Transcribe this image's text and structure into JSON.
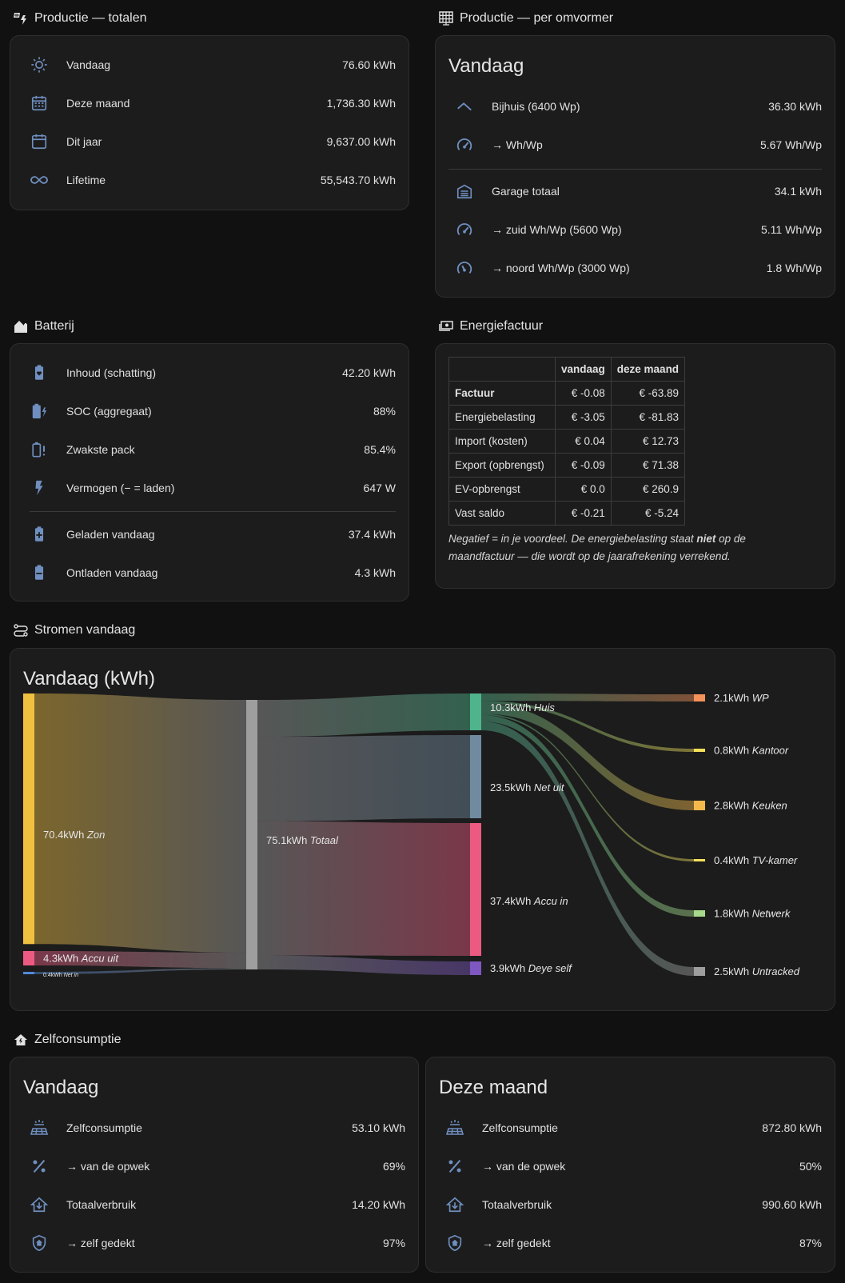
{
  "prod_totals": {
    "title": "Productie — totalen",
    "rows": [
      {
        "label": "Vandaag",
        "value": "76.60 kWh",
        "icon": "sun-icon"
      },
      {
        "label": "Deze maand",
        "value": "1,736.30 kWh",
        "icon": "calendar-month-icon"
      },
      {
        "label": "Dit jaar",
        "value": "9,637.00 kWh",
        "icon": "calendar-icon"
      },
      {
        "label": "Lifetime",
        "value": "55,543.70 kWh",
        "icon": "infinity-icon"
      }
    ]
  },
  "prod_inverter": {
    "title": "Productie — per omvormer",
    "header": "Vandaag",
    "rows": [
      {
        "label": "Bijhuis (6400 Wp)",
        "value": "36.30 kWh",
        "icon": "roof-icon"
      },
      {
        "label": "→ Wh/Wp",
        "value": "5.67 Wh/Wp",
        "icon": "gauge-icon"
      },
      {
        "label": "Garage totaal",
        "value": "34.1 kWh",
        "icon": "garage-icon"
      },
      {
        "label": "→ zuid Wh/Wp (5600 Wp)",
        "value": "5.11 Wh/Wp",
        "icon": "gauge-icon"
      },
      {
        "label": "→ noord Wh/Wp (3000 Wp)",
        "value": "1.8 Wh/Wp",
        "icon": "gauge-low-icon"
      }
    ]
  },
  "battery": {
    "title": "Batterij",
    "rows": [
      {
        "label": "Inhoud (schatting)",
        "value": "42.20 kWh",
        "icon": "battery-heart-icon"
      },
      {
        "label": "SOC (aggregaat)",
        "value": "88%",
        "icon": "battery-charging-icon"
      },
      {
        "label": "Zwakste pack",
        "value": "85.4%",
        "icon": "battery-alert-icon"
      },
      {
        "label": "Vermogen (− = laden)",
        "value": "647 W",
        "icon": "flash-icon"
      },
      {
        "label": "Geladen vandaag",
        "value": "37.4 kWh",
        "icon": "battery-plus-icon"
      },
      {
        "label": "Ontladen vandaag",
        "value": "4.3 kWh",
        "icon": "battery-minus-icon"
      }
    ]
  },
  "bill": {
    "title": "Energiefactuur",
    "columns": [
      "",
      "vandaag",
      "deze maand"
    ],
    "rows": [
      {
        "label": "Factuur",
        "today": "€ -0.08",
        "month": "€ -63.89",
        "bold": true
      },
      {
        "label": "Energiebelasting",
        "today": "€ -3.05",
        "month": "€ -81.83"
      },
      {
        "label": "Import (kosten)",
        "today": "€ 0.04",
        "month": "€ 12.73"
      },
      {
        "label": "Export (opbrengst)",
        "today": "€ -0.09",
        "month": "€ 71.38"
      },
      {
        "label": "EV-opbrengst",
        "today": "€ 0.0",
        "month": "€ 260.9"
      },
      {
        "label": "Vast saldo",
        "today": "€ -0.21",
        "month": "€ -5.24"
      }
    ],
    "note_part1": "Negatief = in je voordeel. De energiebelasting staat ",
    "note_bold": "niet",
    "note_part2": " op de",
    "note_line2": "maandfactuur — die wordt op de jaarafrekening verrekend."
  },
  "flows": {
    "title": "Stromen vandaag",
    "header": "Vandaag (kWh)"
  },
  "chart_data": {
    "type": "sankey",
    "title": "Vandaag (kWh)",
    "unit": "kWh",
    "nodes": [
      {
        "id": "zon",
        "name": "Zon",
        "value": 70.4,
        "label": "70.4kWh",
        "color": "#f0c040"
      },
      {
        "id": "accu_uit",
        "name": "Accu uit",
        "value": 4.3,
        "label": "4.3kWh",
        "color": "#ec5a82"
      },
      {
        "id": "net_in",
        "name": "Net in",
        "value": 0.4,
        "label": "0.4kWh",
        "color": "#4f8ad9"
      },
      {
        "id": "totaal",
        "name": "Totaal",
        "value": 75.1,
        "label": "75.1kWh",
        "color": "#9e9e9e"
      },
      {
        "id": "huis",
        "name": "Huis",
        "value": 10.3,
        "label": "10.3kWh",
        "color": "#4fb48c"
      },
      {
        "id": "net_uit",
        "name": "Net uit",
        "value": 23.5,
        "label": "23.5kWh",
        "color": "#708aa0"
      },
      {
        "id": "accu_in",
        "name": "Accu in",
        "value": 37.4,
        "label": "37.4kWh",
        "color": "#ec5a82"
      },
      {
        "id": "deye_self",
        "name": "Deye self",
        "value": 3.9,
        "label": "3.9kWh",
        "color": "#7e57c2"
      },
      {
        "id": "wp",
        "name": "WP",
        "value": 2.1,
        "label": "2.1kWh",
        "color": "#f4925a"
      },
      {
        "id": "kantoor",
        "name": "Kantoor",
        "value": 0.8,
        "label": "0.8kWh",
        "color": "#f5e05a"
      },
      {
        "id": "keuken",
        "name": "Keuken",
        "value": 2.8,
        "label": "2.8kWh",
        "color": "#f5b84a"
      },
      {
        "id": "tvkamer",
        "name": "TV-kamer",
        "value": 0.4,
        "label": "0.4kWh",
        "color": "#f5e05a"
      },
      {
        "id": "netwerk",
        "name": "Netwerk",
        "value": 1.8,
        "label": "1.8kWh",
        "color": "#a6d98a"
      },
      {
        "id": "untracked",
        "name": "Untracked",
        "value": 2.5,
        "label": "2.5kWh",
        "color": "#9e9e9e"
      }
    ],
    "links": [
      {
        "source": "zon",
        "target": "totaal",
        "value": 70.4
      },
      {
        "source": "accu_uit",
        "target": "totaal",
        "value": 4.3
      },
      {
        "source": "net_in",
        "target": "totaal",
        "value": 0.4
      },
      {
        "source": "totaal",
        "target": "huis",
        "value": 10.3
      },
      {
        "source": "totaal",
        "target": "net_uit",
        "value": 23.5
      },
      {
        "source": "totaal",
        "target": "accu_in",
        "value": 37.4
      },
      {
        "source": "totaal",
        "target": "deye_self",
        "value": 3.9
      },
      {
        "source": "huis",
        "target": "wp",
        "value": 2.1
      },
      {
        "source": "huis",
        "target": "kantoor",
        "value": 0.8
      },
      {
        "source": "huis",
        "target": "keuken",
        "value": 2.8
      },
      {
        "source": "huis",
        "target": "tvkamer",
        "value": 0.4
      },
      {
        "source": "huis",
        "target": "netwerk",
        "value": 1.8
      },
      {
        "source": "huis",
        "target": "untracked",
        "value": 2.5
      }
    ]
  },
  "self": {
    "title": "Zelfconsumptie",
    "today": {
      "header": "Vandaag",
      "rows": [
        {
          "label": "Zelfconsumptie",
          "value": "53.10 kWh",
          "icon": "solar-panel-icon"
        },
        {
          "label": "→ van de opwek",
          "value": "69%",
          "icon": "percent-icon"
        },
        {
          "label": "Totaalverbruik",
          "value": "14.20 kWh",
          "icon": "home-import-icon"
        },
        {
          "label": "→ zelf gedekt",
          "value": "97%",
          "icon": "shield-home-icon"
        }
      ]
    },
    "month": {
      "header": "Deze maand",
      "rows": [
        {
          "label": "Zelfconsumptie",
          "value": "872.80 kWh",
          "icon": "solar-panel-icon"
        },
        {
          "label": "→ van de opwek",
          "value": "50%",
          "icon": "percent-icon"
        },
        {
          "label": "Totaalverbruik",
          "value": "990.60 kWh",
          "icon": "home-import-icon"
        },
        {
          "label": "→ zelf gedekt",
          "value": "87%",
          "icon": "shield-home-icon"
        }
      ]
    }
  }
}
